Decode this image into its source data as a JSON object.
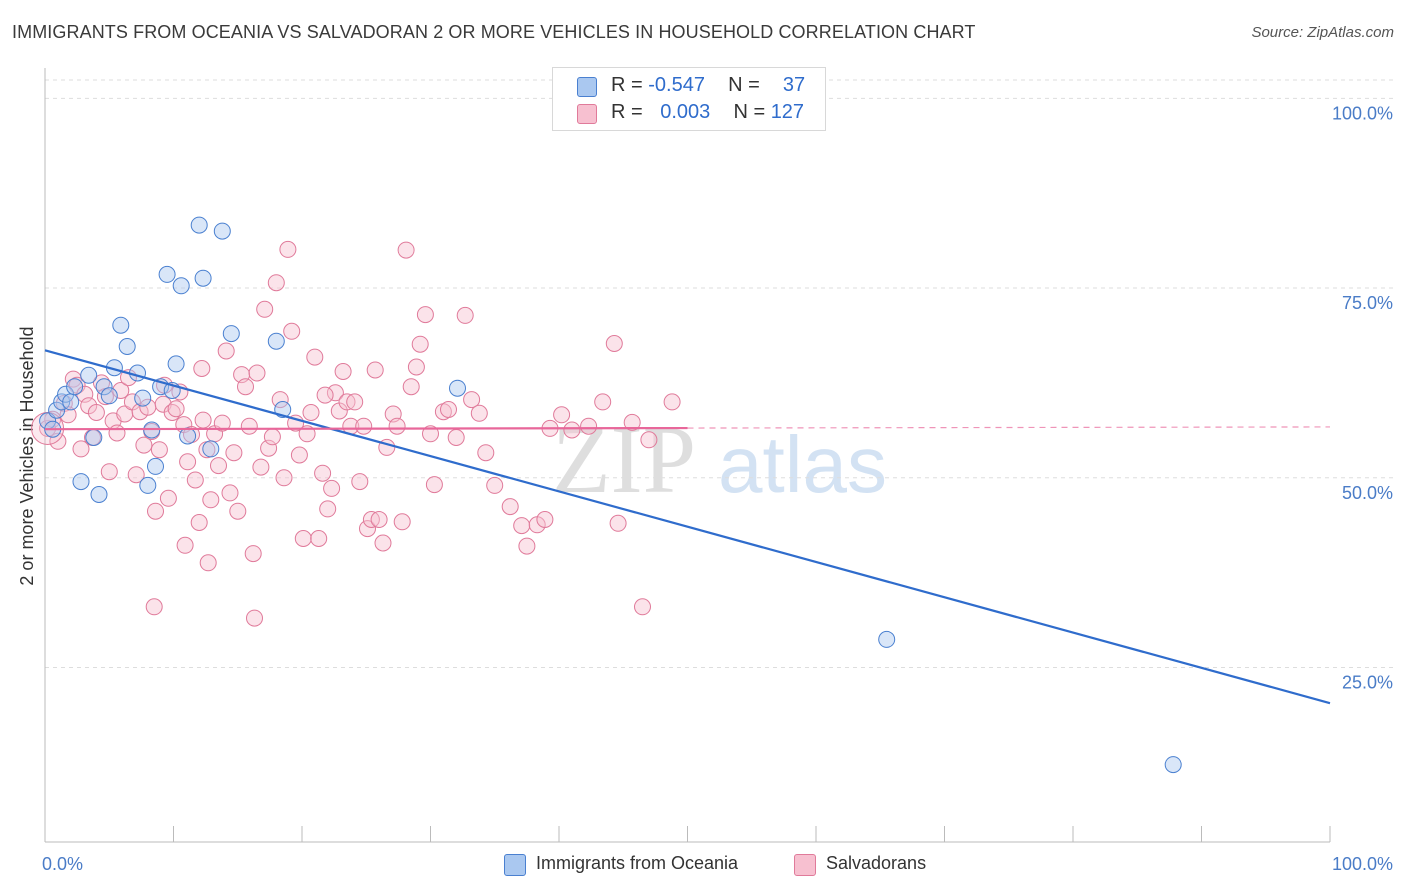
{
  "title": "IMMIGRANTS FROM OCEANIA VS SALVADORAN 2 OR MORE VEHICLES IN HOUSEHOLD CORRELATION CHART",
  "source": "Source: ZipAtlas.com",
  "watermark": {
    "zip": "ZIP",
    "atlas": "atlas"
  },
  "stats": [
    {
      "r_label": "R =",
      "r_value": "-0.547",
      "n_label": "N =",
      "n_value": "37",
      "fill": "#aac8f0",
      "stroke": "#4a80d0"
    },
    {
      "r_label": "R =",
      "r_value": "0.003",
      "n_label": "N =",
      "n_value": "127",
      "fill": "#f7c0d0",
      "stroke": "#e07a9a"
    }
  ],
  "legend": [
    {
      "label": "Immigrants from Oceania",
      "fill": "#aac8f0",
      "stroke": "#4a80d0"
    },
    {
      "label": "Salvadorans",
      "fill": "#f7c0d0",
      "stroke": "#e07a9a"
    }
  ],
  "colors": {
    "oceania_fill": "#aac8f0",
    "oceania_stroke": "#4a80d0",
    "oceania_line": "#2f6ccc",
    "salvadoran_fill": "#f7c0d0",
    "salvadoran_stroke": "#e07a9a",
    "salvadoran_line": "#e8679a",
    "tick": "#4a7cc7",
    "grid": "#dddddd"
  },
  "chart_data": {
    "type": "scatter",
    "title": "IMMIGRANTS FROM OCEANIA VS SALVADORAN 2 OR MORE VEHICLES IN HOUSEHOLD CORRELATION CHART",
    "xlabel": "",
    "ylabel": "2 or more Vehicles in Household",
    "xlim": [
      0,
      100
    ],
    "ylim": [
      2,
      104
    ],
    "x_tick_labels": [
      {
        "value": 0,
        "label": "0.0%"
      },
      {
        "value": 100,
        "label": "100.0%"
      }
    ],
    "y_ticks": [
      {
        "value": 25,
        "label": "25.0%"
      },
      {
        "value": 50,
        "label": "50.0%"
      },
      {
        "value": 75,
        "label": "75.0%"
      },
      {
        "value": 100,
        "label": "100.0%"
      }
    ],
    "grid": true,
    "legend_position": "bottom-center",
    "series": [
      {
        "name": "Immigrants from Oceania",
        "trend": {
          "x": [
            0,
            100
          ],
          "y": [
            66.8,
            20.3
          ],
          "dashed_from": null
        },
        "points": [
          [
            0.2,
            57.5
          ],
          [
            0.6,
            56.4
          ],
          [
            0.9,
            58.9
          ],
          [
            1.3,
            60.0
          ],
          [
            1.6,
            61.0
          ],
          [
            2.0,
            60.0
          ],
          [
            2.3,
            62.0
          ],
          [
            2.8,
            49.5
          ],
          [
            3.4,
            63.5
          ],
          [
            3.8,
            55.3
          ],
          [
            4.2,
            47.8
          ],
          [
            4.6,
            62.0
          ],
          [
            5.0,
            60.8
          ],
          [
            5.4,
            64.5
          ],
          [
            5.9,
            70.1
          ],
          [
            6.4,
            67.3
          ],
          [
            7.2,
            63.8
          ],
          [
            7.6,
            60.5
          ],
          [
            8.0,
            49.0
          ],
          [
            8.3,
            56.3
          ],
          [
            8.6,
            51.5
          ],
          [
            9.0,
            62.0
          ],
          [
            9.5,
            76.8
          ],
          [
            9.9,
            61.5
          ],
          [
            10.2,
            65.0
          ],
          [
            10.6,
            75.3
          ],
          [
            11.1,
            55.5
          ],
          [
            12.0,
            83.3
          ],
          [
            12.3,
            76.3
          ],
          [
            12.9,
            53.8
          ],
          [
            13.8,
            82.5
          ],
          [
            14.5,
            69.0
          ],
          [
            18.0,
            68.0
          ],
          [
            18.5,
            59.0
          ],
          [
            32.1,
            61.8
          ],
          [
            65.5,
            28.7
          ],
          [
            87.8,
            12.2
          ]
        ]
      },
      {
        "name": "Salvadorans",
        "trend": {
          "x": [
            0,
            100
          ],
          "y": [
            56.4,
            56.7
          ],
          "dashed_from": 50
        },
        "points": [
          [
            0.2,
            56.5
          ],
          [
            0.6,
            57.7
          ],
          [
            1.0,
            54.8
          ],
          [
            1.5,
            59.8
          ],
          [
            1.8,
            58.3
          ],
          [
            2.2,
            63.0
          ],
          [
            2.5,
            62.2
          ],
          [
            2.8,
            53.8
          ],
          [
            3.1,
            61.0
          ],
          [
            3.4,
            59.5
          ],
          [
            3.7,
            55.3
          ],
          [
            4.0,
            58.6
          ],
          [
            4.4,
            62.5
          ],
          [
            4.7,
            60.7
          ],
          [
            5.0,
            50.8
          ],
          [
            5.3,
            57.5
          ],
          [
            5.6,
            55.9
          ],
          [
            5.9,
            61.5
          ],
          [
            6.2,
            58.4
          ],
          [
            6.5,
            63.2
          ],
          [
            6.8,
            60.0
          ],
          [
            7.1,
            50.4
          ],
          [
            7.4,
            58.7
          ],
          [
            7.7,
            54.3
          ],
          [
            8.0,
            59.3
          ],
          [
            8.3,
            56.1
          ],
          [
            8.6,
            45.6
          ],
          [
            8.9,
            53.7
          ],
          [
            9.2,
            59.7
          ],
          [
            9.6,
            47.3
          ],
          [
            9.9,
            58.6
          ],
          [
            10.2,
            59.1
          ],
          [
            10.5,
            61.3
          ],
          [
            10.8,
            57.0
          ],
          [
            11.1,
            52.1
          ],
          [
            11.4,
            55.7
          ],
          [
            11.7,
            49.7
          ],
          [
            12.0,
            44.1
          ],
          [
            12.3,
            57.6
          ],
          [
            12.6,
            53.7
          ],
          [
            12.9,
            47.1
          ],
          [
            13.2,
            55.8
          ],
          [
            13.5,
            51.6
          ],
          [
            13.8,
            57.2
          ],
          [
            14.1,
            66.7
          ],
          [
            14.4,
            48.0
          ],
          [
            14.7,
            53.3
          ],
          [
            15.0,
            45.6
          ],
          [
            15.3,
            63.6
          ],
          [
            15.6,
            62.0
          ],
          [
            15.9,
            56.8
          ],
          [
            16.2,
            40.0
          ],
          [
            16.5,
            63.8
          ],
          [
            16.8,
            51.4
          ],
          [
            17.1,
            72.2
          ],
          [
            17.4,
            53.9
          ],
          [
            17.7,
            55.4
          ],
          [
            18.0,
            75.7
          ],
          [
            18.3,
            60.3
          ],
          [
            18.6,
            50.0
          ],
          [
            18.9,
            80.1
          ],
          [
            19.2,
            69.3
          ],
          [
            19.5,
            57.2
          ],
          [
            19.8,
            53.0
          ],
          [
            20.1,
            42.0
          ],
          [
            20.4,
            55.8
          ],
          [
            20.7,
            58.6
          ],
          [
            21.0,
            65.9
          ],
          [
            21.3,
            42.0
          ],
          [
            21.6,
            50.6
          ],
          [
            22.0,
            45.9
          ],
          [
            22.3,
            48.6
          ],
          [
            22.6,
            61.2
          ],
          [
            22.9,
            58.8
          ],
          [
            23.2,
            64.0
          ],
          [
            23.5,
            60.0
          ],
          [
            23.8,
            56.8
          ],
          [
            24.1,
            60.0
          ],
          [
            24.5,
            49.5
          ],
          [
            24.8,
            56.8
          ],
          [
            25.1,
            43.3
          ],
          [
            25.4,
            44.5
          ],
          [
            25.7,
            64.2
          ],
          [
            26.0,
            44.5
          ],
          [
            26.3,
            41.4
          ],
          [
            26.6,
            54.0
          ],
          [
            27.1,
            58.4
          ],
          [
            27.4,
            56.8
          ],
          [
            27.8,
            44.2
          ],
          [
            28.1,
            80.0
          ],
          [
            28.5,
            62.0
          ],
          [
            28.9,
            64.6
          ],
          [
            29.2,
            67.6
          ],
          [
            29.6,
            71.5
          ],
          [
            30.0,
            55.8
          ],
          [
            30.3,
            49.1
          ],
          [
            31.0,
            58.7
          ],
          [
            31.4,
            59.0
          ],
          [
            32.0,
            55.3
          ],
          [
            32.7,
            71.4
          ],
          [
            33.2,
            60.3
          ],
          [
            33.8,
            58.5
          ],
          [
            34.3,
            53.3
          ],
          [
            35.0,
            49.0
          ],
          [
            36.2,
            46.2
          ],
          [
            37.1,
            43.7
          ],
          [
            37.5,
            41.0
          ],
          [
            38.3,
            43.8
          ],
          [
            38.9,
            44.5
          ],
          [
            39.3,
            56.5
          ],
          [
            40.2,
            58.3
          ],
          [
            41.0,
            56.3
          ],
          [
            42.3,
            56.8
          ],
          [
            43.4,
            60.0
          ],
          [
            44.3,
            67.7
          ],
          [
            44.6,
            44.0
          ],
          [
            45.7,
            57.3
          ],
          [
            46.5,
            33.0
          ],
          [
            47.0,
            55.0
          ],
          [
            48.8,
            60.0
          ],
          [
            8.5,
            33.0
          ],
          [
            10.9,
            41.1
          ],
          [
            12.7,
            38.8
          ],
          [
            16.3,
            31.5
          ],
          [
            9.3,
            62.2
          ],
          [
            21.8,
            60.9
          ],
          [
            12.2,
            64.4
          ]
        ]
      }
    ]
  }
}
